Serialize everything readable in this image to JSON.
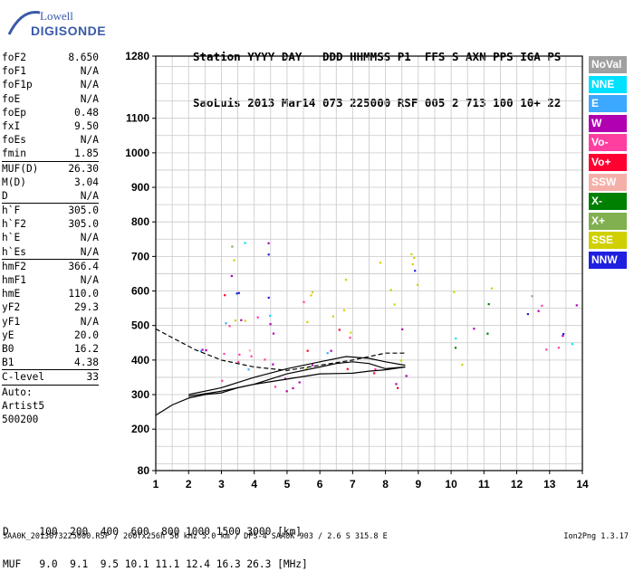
{
  "logo": {
    "line1": "Lowell",
    "line2": "DIGISONDE"
  },
  "header": {
    "line1": "Station YYYY DAY   DDD HHMMSS P1  FFS S AXN PPS IGA PS",
    "line2": "SaoLuis 2013 Mar14 073 225000 RSF 005 2 713 100 10+ 22"
  },
  "params": [
    {
      "label": "foF2",
      "value": "8.650"
    },
    {
      "label": "foF1",
      "value": "N/A"
    },
    {
      "label": "foF1p",
      "value": "N/A"
    },
    {
      "label": "foE",
      "value": "N/A"
    },
    {
      "label": "foEp",
      "value": "0.48"
    },
    {
      "label": "fxI",
      "value": "9.50"
    },
    {
      "label": "foEs",
      "value": "N/A"
    },
    {
      "label": "fmin",
      "value": "1.85"
    },
    {
      "sep": true
    },
    {
      "label": "MUF(D)",
      "value": "26.30"
    },
    {
      "label": "M(D)",
      "value": "3.04"
    },
    {
      "label": "D",
      "value": "N/A"
    },
    {
      "sep": true
    },
    {
      "label": "h`F",
      "value": "305.0"
    },
    {
      "label": "h`F2",
      "value": "305.0"
    },
    {
      "label": "h`E",
      "value": "N/A"
    },
    {
      "label": "h`Es",
      "value": "N/A"
    },
    {
      "sep": true
    },
    {
      "label": "hmF2",
      "value": "366.4"
    },
    {
      "label": "hmF1",
      "value": "N/A"
    },
    {
      "label": "hmE",
      "value": "110.0"
    },
    {
      "label": "yF2",
      "value": "29.3"
    },
    {
      "label": "yF1",
      "value": "N/A"
    },
    {
      "label": "yE",
      "value": "20.0"
    },
    {
      "label": "B0",
      "value": "16.2"
    },
    {
      "label": "B1",
      "value": "4.38"
    },
    {
      "sep": true
    },
    {
      "label": "C-level",
      "value": "33"
    },
    {
      "sep": true
    },
    {
      "label": "Auto:",
      "value": ""
    },
    {
      "label": "Artist5",
      "value": ""
    },
    {
      "label": "500200",
      "value": ""
    }
  ],
  "legend": [
    {
      "label": "NoVal",
      "color": "#a0a0a0"
    },
    {
      "label": "NNE",
      "color": "#00e0ff"
    },
    {
      "label": "E",
      "color": "#3ca8ff"
    },
    {
      "label": "W",
      "color": "#b000b0"
    },
    {
      "label": "Vo-",
      "color": "#ff3fa0"
    },
    {
      "label": "Vo+",
      "color": "#ff0030"
    },
    {
      "label": "SSW",
      "color": "#f4b0a8"
    },
    {
      "label": "X-",
      "color": "#008000"
    },
    {
      "label": "X+",
      "color": "#80b050"
    },
    {
      "label": "SSE",
      "color": "#d0d000"
    },
    {
      "label": "NNW",
      "color": "#2020e0"
    }
  ],
  "bottom": {
    "line1": "D     100  200  400  600  800 1000 1500 3000 [km]",
    "line2": "MUF   9.0  9.1  9.5 10.1 11.1 12.4 16.3 26.3 [MHz]"
  },
  "footer": {
    "left": "SAA0K_2013073225000.RSF / 260fx256h 50 kHz 5.0 km / DPS-4 SAA0K 903 / 2.6 S 315.8 E",
    "right": "Ion2Png 1.3.17"
  },
  "chart_data": {
    "type": "scatter",
    "title": "",
    "xlabel": "",
    "ylabel": "",
    "xlim": [
      1,
      14
    ],
    "ylim": [
      80,
      1280
    ],
    "x_ticks": [
      1,
      2,
      3,
      4,
      5,
      6,
      7,
      8,
      9,
      10,
      11,
      12,
      13,
      14
    ],
    "y_ticks": [
      80,
      200,
      300,
      400,
      500,
      600,
      700,
      800,
      900,
      1000,
      1100,
      1280
    ],
    "grid": true,
    "legend_placement": "right",
    "clusters": [
      {
        "x": [
          2.0,
          2.6
        ],
        "y": [
          290,
          450
        ],
        "weights": [
          0.07,
          0.07,
          0.1,
          0.5,
          0.25,
          0,
          0,
          0.01,
          0,
          0,
          0
        ]
      },
      {
        "x": [
          2.6,
          4.7
        ],
        "y": [
          280,
          520
        ],
        "weights": [
          0.05,
          0.05,
          0.05,
          0.25,
          0.4,
          0.15,
          0.02,
          0.01,
          0,
          0.02,
          0
        ]
      },
      {
        "x": [
          3.0,
          4.6
        ],
        "y": [
          520,
          760
        ],
        "weights": [
          0.02,
          0.05,
          0.05,
          0.2,
          0.06,
          0.03,
          0,
          0.02,
          0.02,
          0.2,
          0.35
        ]
      },
      {
        "x": [
          2.9,
          4.6
        ],
        "y": [
          490,
          570
        ],
        "weights": [
          0.01,
          0.01,
          0.01,
          0.03,
          0.05,
          0.02,
          0,
          0.02,
          0.02,
          0.83,
          0
        ]
      },
      {
        "x": [
          4.8,
          6.1
        ],
        "y": [
          300,
          500
        ],
        "weights": [
          0.03,
          0.05,
          0.05,
          0.25,
          0.3,
          0.15,
          0.02,
          0.05,
          0.03,
          0.07,
          0
        ]
      },
      {
        "x": [
          4.9,
          6.0
        ],
        "y": [
          510,
          630
        ],
        "weights": [
          0.02,
          0.02,
          0.02,
          0.03,
          0.05,
          0.02,
          0,
          0.03,
          0.02,
          0.79,
          0
        ]
      },
      {
        "x": [
          6.0,
          7.1
        ],
        "y": [
          320,
          500
        ],
        "weights": [
          0.03,
          0.03,
          0.05,
          0.2,
          0.35,
          0.2,
          0.02,
          0.05,
          0.02,
          0.05,
          0
        ]
      },
      {
        "x": [
          6.2,
          7.0
        ],
        "y": [
          520,
          640
        ],
        "weights": [
          0.02,
          0.02,
          0.02,
          0.04,
          0.04,
          0.02,
          0,
          0.02,
          0.02,
          0.8,
          0
        ]
      },
      {
        "x": [
          7.6,
          9.0
        ],
        "y": [
          320,
          500
        ],
        "weights": [
          0.03,
          0.04,
          0.05,
          0.18,
          0.3,
          0.22,
          0.02,
          0.07,
          0.04,
          0.05,
          0
        ]
      },
      {
        "x": [
          7.6,
          9.0
        ],
        "y": [
          520,
          720
        ],
        "weights": [
          0.02,
          0.02,
          0.03,
          0.1,
          0.05,
          0.02,
          0,
          0.02,
          0.02,
          0.62,
          0.1
        ]
      },
      {
        "x": [
          10.0,
          11.4
        ],
        "y": [
          360,
          500
        ],
        "weights": [
          0.03,
          0.05,
          0.1,
          0.15,
          0.25,
          0.2,
          0.02,
          0.12,
          0.05,
          0.03,
          0
        ]
      },
      {
        "x": [
          10.0,
          11.5
        ],
        "y": [
          560,
          620
        ],
        "weights": [
          0.02,
          0.02,
          0.02,
          0.03,
          0.03,
          0.02,
          0,
          0.02,
          0.02,
          0.82,
          0
        ]
      },
      {
        "x": [
          12.2,
          13.9
        ],
        "y": [
          400,
          460
        ],
        "weights": [
          0.02,
          0.03,
          0.05,
          0.15,
          0.4,
          0.25,
          0.02,
          0.03,
          0.02,
          0.03,
          0
        ]
      },
      {
        "x": [
          12.2,
          13.9
        ],
        "y": [
          460,
          600
        ],
        "weights": [
          0.03,
          0.12,
          0.12,
          0.22,
          0.12,
          0.05,
          0,
          0.02,
          0.02,
          0.05,
          0.25
        ]
      }
    ],
    "profile_lines": [
      {
        "x": [
          1.0,
          1.5,
          2.0,
          2.5,
          3.0,
          3.5,
          4.0,
          5.0,
          6.0,
          7.0,
          7.5,
          8.0,
          8.6
        ],
        "y": [
          240,
          270,
          290,
          300,
          305,
          320,
          330,
          345,
          360,
          362,
          368,
          372,
          380
        ]
      },
      {
        "x": [
          2.0,
          3.0,
          4.0,
          5.0,
          6.0,
          6.5,
          7.0,
          7.5,
          8.0,
          8.6
        ],
        "y": [
          295,
          310,
          330,
          360,
          380,
          390,
          395,
          390,
          375,
          380
        ]
      },
      {
        "x": [
          2.0,
          3.0,
          4.0,
          5.0,
          6.0,
          6.8,
          7.5,
          8.0,
          8.6
        ],
        "y": [
          300,
          320,
          350,
          375,
          395,
          410,
          405,
          395,
          385
        ]
      },
      {
        "x": [
          1.0,
          1.6,
          2.2,
          3.0,
          4.0,
          5.0,
          6.0,
          7.0,
          8.0,
          8.6
        ],
        "y": [
          490,
          460,
          430,
          400,
          380,
          370,
          385,
          400,
          420,
          420
        ]
      }
    ]
  }
}
